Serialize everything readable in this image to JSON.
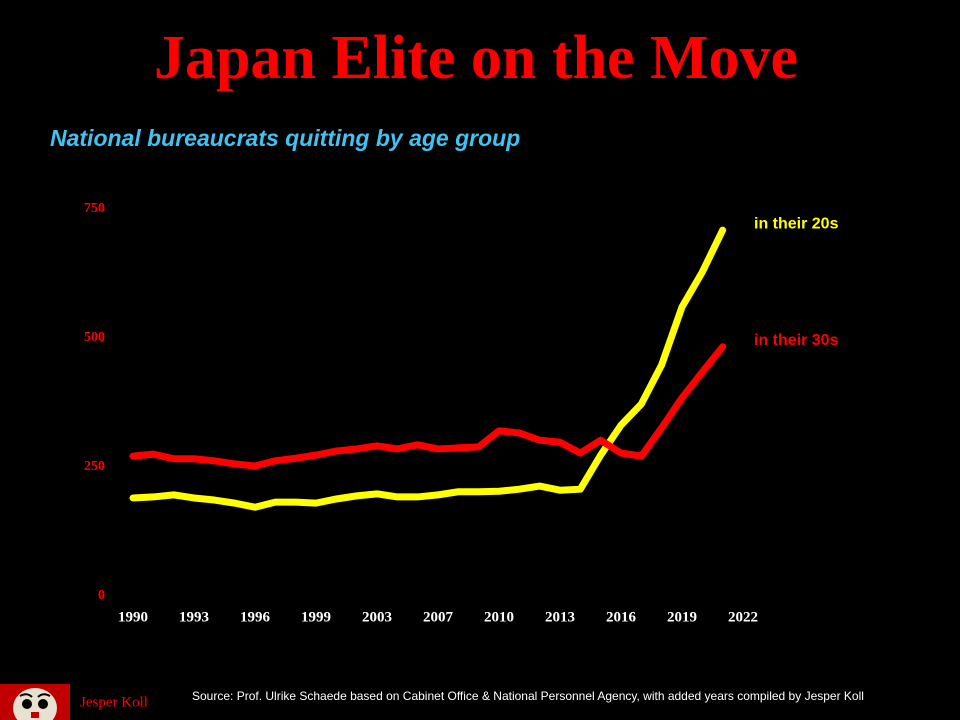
{
  "chart_data": {
    "type": "line",
    "title": "Japan Elite on the Move",
    "subtitle": "National bureaucrats quitting by age group",
    "source": "Source: Prof. Ulrike Schaede based on Cabinet Office & National Personnel Agency, with added years compiled by  Jesper Koll",
    "author": "Jesper Koll",
    "categories": [
      "1990",
      null,
      null,
      "1993",
      null,
      null,
      "1996",
      null,
      null,
      "1999",
      null,
      null,
      "2003",
      null,
      null,
      "2007",
      null,
      null,
      "2010",
      null,
      null,
      "2013",
      null,
      null,
      "2016",
      null,
      null,
      "2019",
      null,
      null,
      "2022"
    ],
    "ylim": [
      0,
      750
    ],
    "yticks": [
      0,
      250,
      500,
      750
    ],
    "grid": false,
    "series": [
      {
        "name": "in their 20s",
        "color": "#ffff00",
        "values": [
          190,
          192,
          196,
          190,
          186,
          180,
          172,
          182,
          182,
          180,
          188,
          194,
          198,
          192,
          192,
          196,
          202,
          202,
          203,
          207,
          213,
          205,
          207,
          273,
          331,
          372,
          448,
          560,
          628,
          709,
          null
        ]
      },
      {
        "name": "in their 30s",
        "color": "#ff0000",
        "values": [
          271,
          275,
          266,
          266,
          262,
          256,
          252,
          262,
          267,
          273,
          281,
          285,
          291,
          285,
          293,
          285,
          287,
          289,
          320,
          316,
          302,
          298,
          277,
          302,
          277,
          271,
          326,
          384,
          434,
          483,
          null
        ]
      }
    ]
  }
}
